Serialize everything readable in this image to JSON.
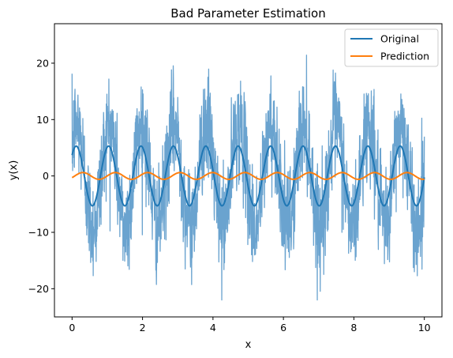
{
  "chart_data": {
    "type": "line",
    "title": "Bad Parameter Estimation",
    "xlabel": "x",
    "ylabel": "y(x)",
    "xlim": [
      -0.5,
      10.5
    ],
    "ylim": [
      -25,
      27
    ],
    "xticks": [
      0,
      2,
      4,
      6,
      8,
      10
    ],
    "yticks": [
      -20,
      -10,
      0,
      10,
      20
    ],
    "legend_position": "top-right",
    "grid": false,
    "noisy_data": {
      "color": "#6aa3cf",
      "x_range": [
        0,
        10
      ],
      "approx_envelope": {
        "min": -22,
        "max": 24.5
      },
      "description_of_signal": "dense noisy oscillation around the original sine"
    },
    "series": [
      {
        "name": "Original",
        "color": "#1f77b4",
        "amplitude": 5.3,
        "period": 0.92,
        "phase_value_at_0": 3.7,
        "x_range": [
          0,
          10
        ]
      },
      {
        "name": "Prediction",
        "color": "#ff7f0e",
        "amplitude": 0.6,
        "period": 0.92,
        "phase_value_at_0": -0.3,
        "x_range": [
          0,
          10
        ]
      }
    ]
  }
}
